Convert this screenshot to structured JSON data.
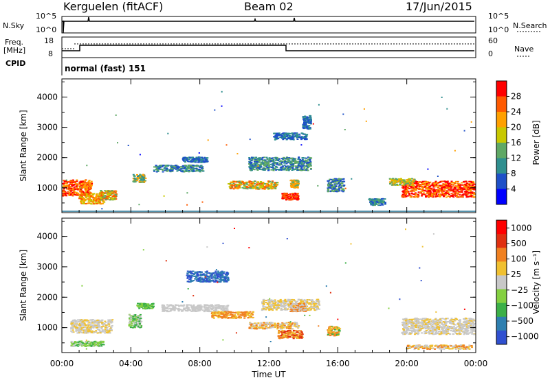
{
  "header": {
    "station": "Kerguelen (fitACF)",
    "beam": "Beam 02",
    "date": "17/Jun/2015"
  },
  "labels": {
    "nsky": "N.Sky",
    "nsearch": "N.Search",
    "freq_line1": "Freq.",
    "freq_line2": "[MHz]",
    "nave": "Nave",
    "cpid": "CPID",
    "mode": "normal (fast) 151",
    "nsky_tick_top": "10^5",
    "nsky_tick_bot": "10^0",
    "nsearch_tick_top": "10^5",
    "nsearch_tick_bot": "10^0",
    "freq_tick_top": "18",
    "freq_tick_bot": "8",
    "nave_tick_top": "60",
    "nave_tick_bot": "0"
  },
  "chart_data": [
    {
      "type": "heatmap",
      "name": "power",
      "ylabel": "Slant Range [km]",
      "yticks": [
        "1000",
        "2000",
        "3000",
        "4000"
      ],
      "colorbar_label": "Power [dB]",
      "colorbar_ticks": [
        "4",
        "8",
        "12",
        "16",
        "20",
        "24",
        "28"
      ],
      "colorscale": [
        "#0000ff",
        "#1e50c8",
        "#2f8f8f",
        "#5fa865",
        "#c8c800",
        "#ffa000",
        "#ff5a00",
        "#ff0000"
      ],
      "background": "#ffffff"
    },
    {
      "type": "heatmap",
      "name": "velocity",
      "ylabel": "Slant Range [km]",
      "yticks": [
        "1000",
        "2000",
        "3000",
        "4000"
      ],
      "colorbar_label": "Velocity [m s⁻¹]",
      "colorbar_ticks": [
        "1000",
        "500",
        "100",
        "25",
        "−25",
        "−100",
        "−500",
        "−1000"
      ],
      "colorscale": [
        "#3050d0",
        "#2e7fb0",
        "#3cb048",
        "#84d040",
        "#c8c8c8",
        "#f0c030",
        "#f08020",
        "#e03010",
        "#ff0000"
      ],
      "background": "#ffffff",
      "xlabel": "Time UT",
      "xticks": [
        "00:00",
        "04:00",
        "08:00",
        "12:00",
        "16:00",
        "20:00",
        "00:00"
      ]
    }
  ],
  "colors": {
    "axis": "#000000",
    "background": "#ffffff"
  }
}
